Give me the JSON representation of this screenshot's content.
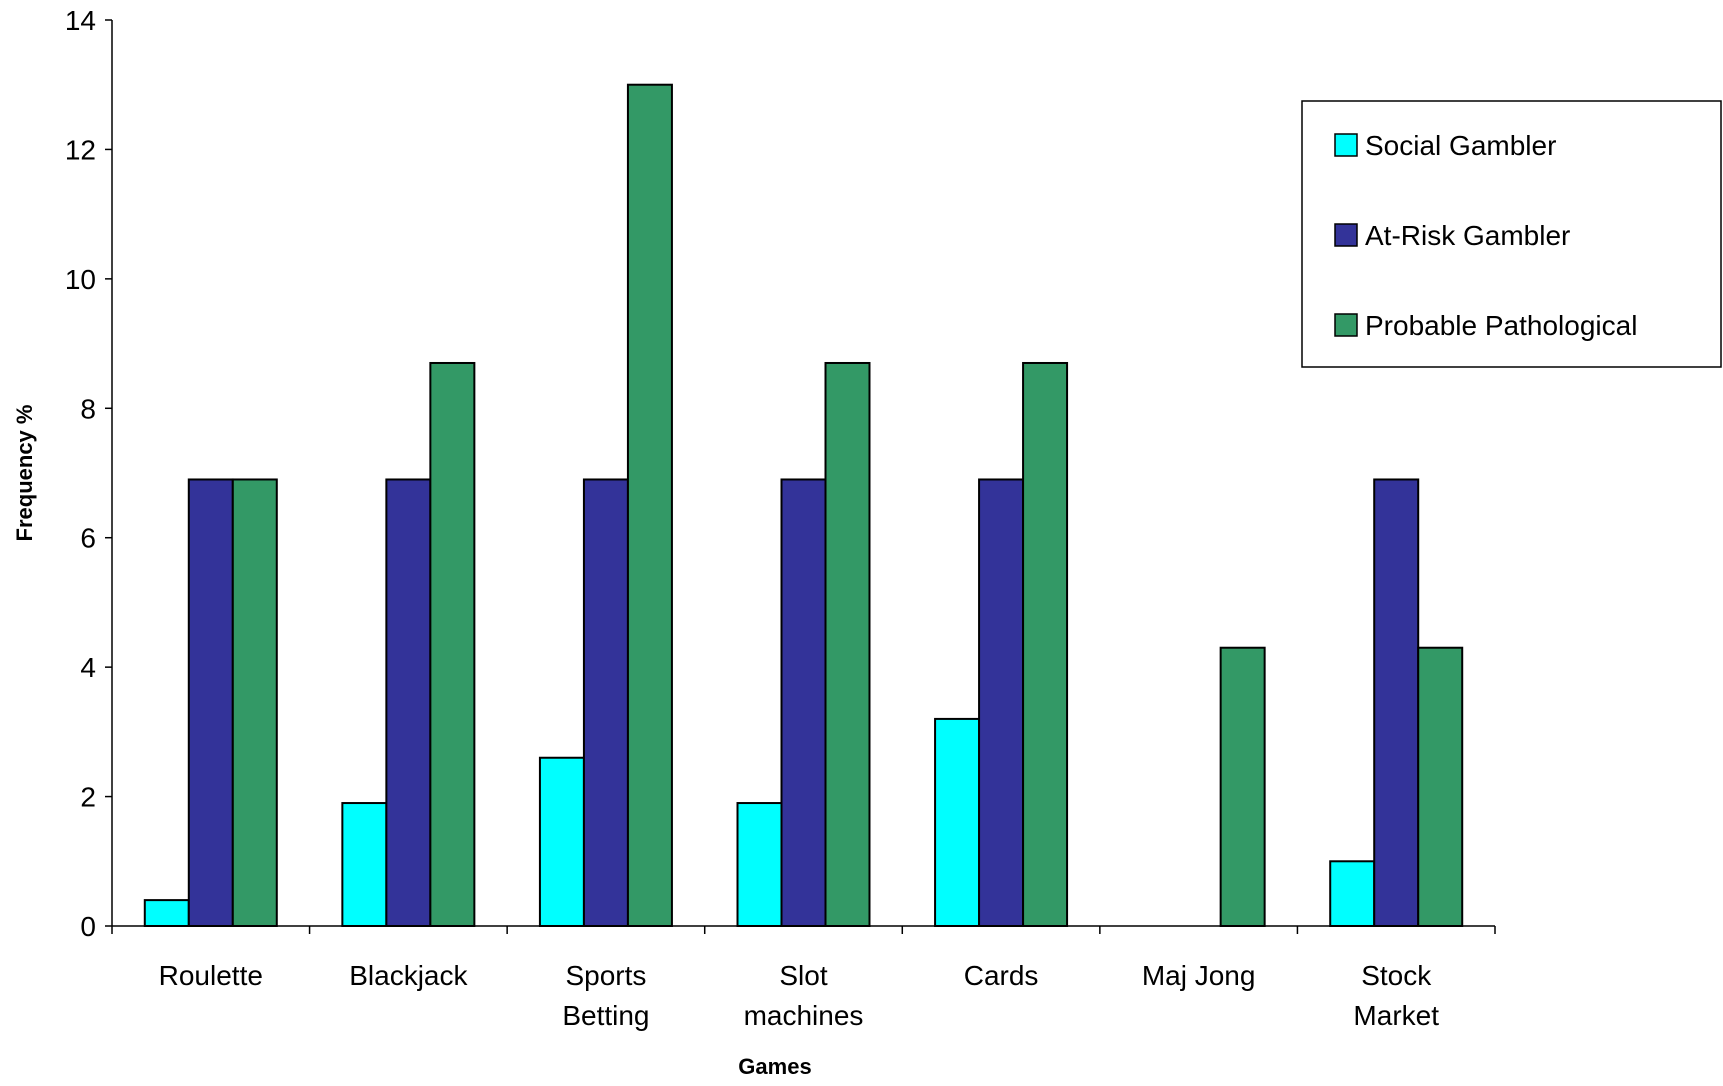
{
  "chart_data": {
    "type": "bar",
    "title": "",
    "xlabel": "Games",
    "ylabel": "Frequency %",
    "ylim": [
      0,
      14
    ],
    "yticks": [
      0,
      2,
      4,
      6,
      8,
      10,
      12,
      14
    ],
    "grid": false,
    "legend_position": "top-right",
    "categories": [
      [
        "Roulette"
      ],
      [
        "Blackjack"
      ],
      [
        "Sports",
        "Betting"
      ],
      [
        "Slot",
        "machines"
      ],
      [
        "Cards"
      ],
      [
        "Maj Jong"
      ],
      [
        "Stock",
        "Market"
      ]
    ],
    "series": [
      {
        "name": "Social Gambler",
        "color": "#00ffff",
        "values": [
          0.4,
          1.9,
          2.6,
          1.9,
          3.2,
          0,
          1.0
        ]
      },
      {
        "name": "At-Risk Gambler",
        "color": "#333399",
        "values": [
          6.9,
          6.9,
          6.9,
          6.9,
          6.9,
          0,
          6.9
        ]
      },
      {
        "name": "Probable Pathological",
        "color": "#339966",
        "values": [
          6.9,
          8.7,
          13.0,
          8.7,
          8.7,
          4.3,
          4.3
        ]
      }
    ]
  }
}
